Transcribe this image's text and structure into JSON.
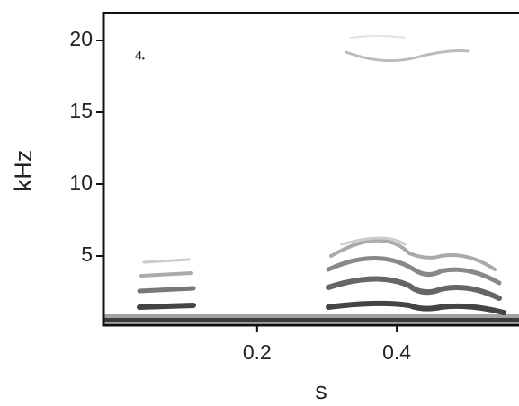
{
  "chart_data": {
    "type": "spectrogram",
    "annotation": "4.",
    "x_label": "s",
    "y_label": "kHz",
    "xlim": [
      -0.02,
      0.575
    ],
    "ylim": [
      0,
      22
    ],
    "xticks": [
      0.2,
      0.4
    ],
    "yticks": [
      5,
      10,
      15,
      20
    ]
  }
}
